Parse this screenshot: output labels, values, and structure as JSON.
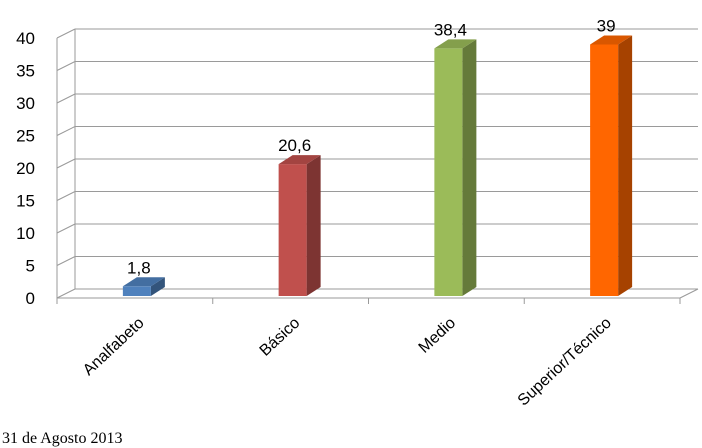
{
  "chart_data": {
    "type": "bar",
    "categories": [
      "Analfabeto",
      "Básico",
      "Medio",
      "Superior/Técnico"
    ],
    "values": [
      1.8,
      20.6,
      38.4,
      39
    ],
    "data_labels": [
      "1,8",
      "20,6",
      "38,4",
      "39"
    ],
    "colors": [
      "#4f81bd",
      "#c0504d",
      "#9bbb59",
      "#ff6600"
    ],
    "ylim": [
      0,
      40
    ],
    "yticks": [
      0,
      5,
      10,
      15,
      20,
      25,
      30,
      35,
      40
    ],
    "grid": true,
    "style": "3d-column"
  },
  "footnote": "31 de Agosto 2013"
}
